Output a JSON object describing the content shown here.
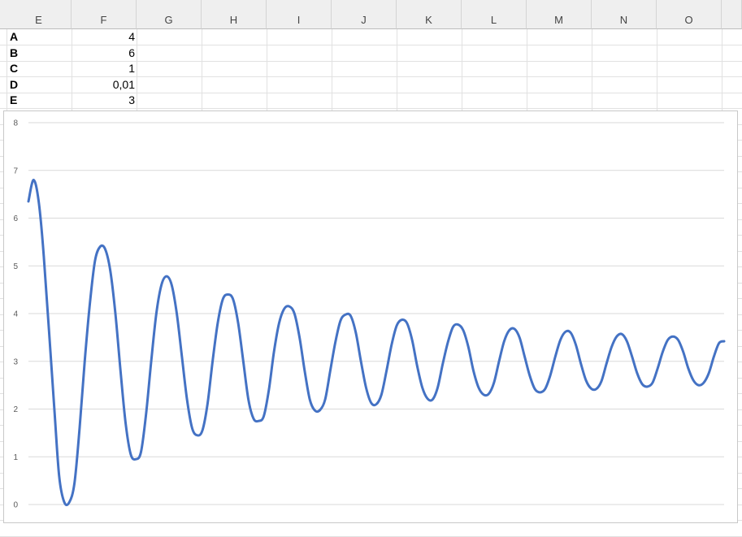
{
  "columns": [
    "E",
    "F",
    "G",
    "H",
    "I",
    "J",
    "K",
    "L",
    "M",
    "N",
    "O"
  ],
  "parameters": [
    {
      "label": "A",
      "value": "4"
    },
    {
      "label": "B",
      "value": "6"
    },
    {
      "label": "C",
      "value": "1"
    },
    {
      "label": "D",
      "value": "0,01"
    },
    {
      "label": "E",
      "value": "3"
    }
  ],
  "chart_data": {
    "type": "line",
    "title": "",
    "xlabel": "",
    "ylabel": "",
    "ylim": [
      0,
      8
    ],
    "yticks": [
      "0",
      "1",
      "2",
      "3",
      "4",
      "5",
      "6",
      "7",
      "8"
    ],
    "grid": true,
    "legend": "none",
    "series": [
      {
        "color": "#4472c4",
        "points": [
          [
            0,
            6.35
          ],
          [
            1,
            6.8
          ],
          [
            2,
            6.35
          ],
          [
            3,
            5.2
          ],
          [
            5,
            2.1
          ],
          [
            6,
            0.6
          ],
          [
            7,
            0.05
          ],
          [
            8,
            0.05
          ],
          [
            9,
            0.45
          ],
          [
            10,
            1.6
          ],
          [
            11,
            3.0
          ],
          [
            12,
            4.2
          ],
          [
            13,
            5.1
          ],
          [
            14,
            5.4
          ],
          [
            15,
            5.35
          ],
          [
            16,
            4.9
          ],
          [
            17,
            4.0
          ],
          [
            18,
            2.8
          ],
          [
            19,
            1.7
          ],
          [
            20,
            1.05
          ],
          [
            21,
            0.95
          ],
          [
            22,
            1.1
          ],
          [
            23,
            1.9
          ],
          [
            24,
            3.0
          ],
          [
            25,
            4.0
          ],
          [
            26,
            4.6
          ],
          [
            27,
            4.78
          ],
          [
            28,
            4.6
          ],
          [
            29,
            4.0
          ],
          [
            30,
            3.1
          ],
          [
            31,
            2.2
          ],
          [
            32,
            1.6
          ],
          [
            33,
            1.45
          ],
          [
            34,
            1.55
          ],
          [
            35,
            2.1
          ],
          [
            36,
            3.0
          ],
          [
            37,
            3.8
          ],
          [
            38,
            4.3
          ],
          [
            39,
            4.4
          ],
          [
            40,
            4.3
          ],
          [
            41,
            3.8
          ],
          [
            42,
            3.0
          ],
          [
            43,
            2.2
          ],
          [
            44,
            1.8
          ],
          [
            45,
            1.75
          ],
          [
            46,
            1.85
          ],
          [
            47,
            2.4
          ],
          [
            48,
            3.2
          ],
          [
            49,
            3.8
          ],
          [
            50,
            4.1
          ],
          [
            51,
            4.15
          ],
          [
            52,
            4.0
          ],
          [
            53,
            3.5
          ],
          [
            54,
            2.8
          ],
          [
            55,
            2.2
          ],
          [
            56,
            1.97
          ],
          [
            57,
            1.98
          ],
          [
            58,
            2.2
          ],
          [
            59,
            2.8
          ],
          [
            60,
            3.4
          ],
          [
            61,
            3.85
          ],
          [
            62,
            3.98
          ],
          [
            63,
            3.95
          ],
          [
            64,
            3.6
          ],
          [
            65,
            3.0
          ],
          [
            66,
            2.45
          ],
          [
            67,
            2.13
          ],
          [
            68,
            2.1
          ],
          [
            69,
            2.3
          ],
          [
            70,
            2.8
          ],
          [
            71,
            3.35
          ],
          [
            72,
            3.75
          ],
          [
            73,
            3.87
          ],
          [
            74,
            3.8
          ],
          [
            75,
            3.45
          ],
          [
            76,
            2.9
          ],
          [
            77,
            2.45
          ],
          [
            78,
            2.22
          ],
          [
            79,
            2.2
          ],
          [
            80,
            2.45
          ],
          [
            81,
            2.95
          ],
          [
            82,
            3.4
          ],
          [
            83,
            3.72
          ],
          [
            84,
            3.77
          ],
          [
            85,
            3.65
          ],
          [
            86,
            3.3
          ],
          [
            87,
            2.8
          ],
          [
            88,
            2.45
          ],
          [
            89,
            2.3
          ],
          [
            90,
            2.32
          ],
          [
            91,
            2.55
          ],
          [
            92,
            3.0
          ],
          [
            93,
            3.42
          ],
          [
            94,
            3.65
          ],
          [
            95,
            3.68
          ],
          [
            96,
            3.5
          ],
          [
            97,
            3.1
          ],
          [
            98,
            2.7
          ],
          [
            99,
            2.42
          ],
          [
            100,
            2.35
          ],
          [
            101,
            2.42
          ],
          [
            102,
            2.7
          ],
          [
            103,
            3.1
          ],
          [
            104,
            3.45
          ],
          [
            105,
            3.62
          ],
          [
            106,
            3.6
          ],
          [
            107,
            3.35
          ],
          [
            108,
            2.95
          ],
          [
            109,
            2.6
          ],
          [
            110,
            2.43
          ],
          [
            111,
            2.42
          ],
          [
            112,
            2.58
          ],
          [
            113,
            2.95
          ],
          [
            114,
            3.3
          ],
          [
            115,
            3.52
          ],
          [
            116,
            3.57
          ],
          [
            117,
            3.42
          ],
          [
            118,
            3.1
          ],
          [
            119,
            2.75
          ],
          [
            120,
            2.52
          ],
          [
            121,
            2.47
          ],
          [
            122,
            2.55
          ],
          [
            123,
            2.85
          ],
          [
            124,
            3.2
          ],
          [
            125,
            3.45
          ],
          [
            126,
            3.52
          ],
          [
            127,
            3.45
          ],
          [
            128,
            3.2
          ],
          [
            129,
            2.85
          ],
          [
            130,
            2.6
          ],
          [
            131,
            2.5
          ],
          [
            132,
            2.55
          ],
          [
            133,
            2.75
          ],
          [
            134,
            3.1
          ],
          [
            135,
            3.38
          ],
          [
            136,
            3.42
          ]
        ]
      }
    ]
  }
}
